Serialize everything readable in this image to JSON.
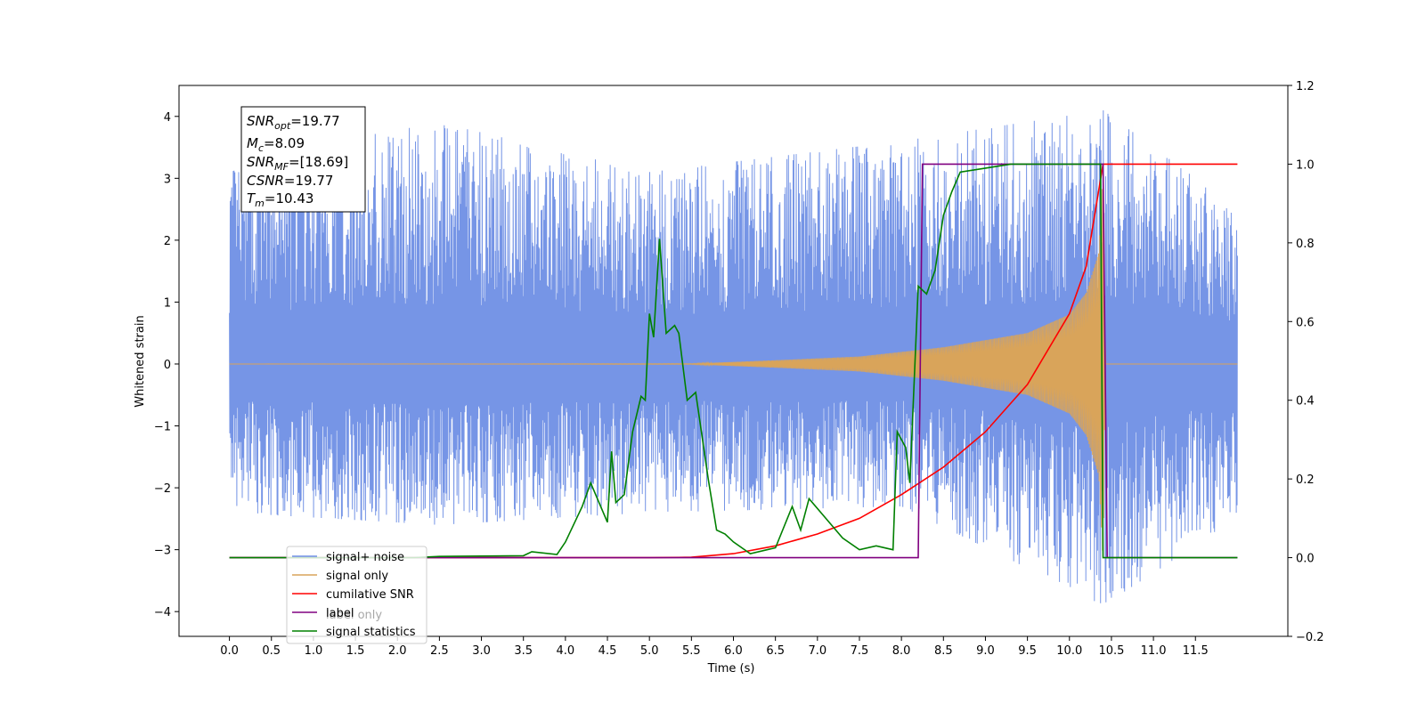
{
  "chart_data": {
    "type": "line",
    "xlabel": "Time (s)",
    "ylabel": "Whitened strain",
    "xlim": [
      -0.6,
      12.6
    ],
    "ylim": [
      -4.4,
      4.5
    ],
    "y2lim": [
      -0.2,
      1.2
    ],
    "xticks": [
      0.0,
      0.5,
      1.0,
      1.5,
      2.0,
      2.5,
      3.0,
      3.5,
      4.0,
      4.5,
      5.0,
      5.5,
      6.0,
      6.5,
      7.0,
      7.5,
      8.0,
      8.5,
      9.0,
      9.5,
      10.0,
      10.5,
      11.0,
      11.5
    ],
    "xtick_labels": [
      "0.0",
      "0.5",
      "1.0",
      "1.5",
      "2.0",
      "2.5",
      "3.0",
      "3.5",
      "4.0",
      "4.5",
      "5.0",
      "5.5",
      "6.0",
      "6.5",
      "7.0",
      "7.5",
      "8.0",
      "8.5",
      "9.0",
      "9.5",
      "10.0",
      "10.5",
      "11.0",
      "11.5"
    ],
    "yticks": [
      -4,
      -3,
      -2,
      -1,
      0,
      1,
      2,
      3,
      4
    ],
    "ytick_labels": [
      "−4",
      "−3",
      "−2",
      "−1",
      "0",
      "1",
      "2",
      "3",
      "4"
    ],
    "y2ticks": [
      -0.2,
      0.0,
      0.2,
      0.4,
      0.6,
      0.8,
      1.0,
      1.2
    ],
    "y2tick_labels": [
      "−0.2",
      "0.0",
      "0.2",
      "0.4",
      "0.6",
      "0.8",
      "1.0",
      "1.2"
    ],
    "grid": false,
    "legend_position": "lower-left",
    "stats": {
      "snr_opt": "=19.77",
      "mc": "=8.09",
      "snr_mf": "=[18.69]",
      "csnr": "=19.77",
      "tm": "=10.43"
    },
    "series": [
      {
        "name": "signal+ noise",
        "axis": "left",
        "color": "#6f8fe5",
        "style": "dense noise band",
        "x_range": [
          0.0,
          12.0
        ],
        "envelope": [
          [
            0.0,
            -2.4,
            3.3
          ],
          [
            2.5,
            -2.6,
            3.9
          ],
          [
            5.0,
            -2.4,
            3.1
          ],
          [
            8.0,
            -2.3,
            3.6
          ],
          [
            10.4,
            -3.9,
            4.1
          ],
          [
            12.0,
            -2.5,
            2.5
          ]
        ]
      },
      {
        "name": "signal only",
        "axis": "left",
        "color": "#d9a45a",
        "style": "chirp",
        "amplitude_points": [
          [
            0.0,
            0.0
          ],
          [
            5.5,
            0.005
          ],
          [
            6.5,
            0.06
          ],
          [
            7.5,
            0.12
          ],
          [
            8.5,
            0.27
          ],
          [
            9.5,
            0.5
          ],
          [
            10.0,
            0.8
          ],
          [
            10.2,
            1.15
          ],
          [
            10.35,
            1.8
          ],
          [
            10.4,
            3.2
          ],
          [
            10.43,
            0.0
          ],
          [
            12.0,
            0.0
          ]
        ]
      },
      {
        "name": "cumilative SNR",
        "axis": "right",
        "color": "#ff0000",
        "points": [
          [
            0.0,
            0.0
          ],
          [
            5.0,
            0.0
          ],
          [
            5.5,
            0.001
          ],
          [
            6.0,
            0.01
          ],
          [
            6.5,
            0.03
          ],
          [
            7.0,
            0.06
          ],
          [
            7.5,
            0.1
          ],
          [
            8.0,
            0.16
          ],
          [
            8.5,
            0.23
          ],
          [
            9.0,
            0.32
          ],
          [
            9.5,
            0.44
          ],
          [
            10.0,
            0.62
          ],
          [
            10.2,
            0.74
          ],
          [
            10.4,
            1.0
          ],
          [
            12.0,
            1.0
          ]
        ]
      },
      {
        "name": "label",
        "axis": "right",
        "color": "#800080",
        "points": [
          [
            0.0,
            0.0
          ],
          [
            8.2,
            0.0
          ],
          [
            8.25,
            1.0
          ],
          [
            10.4,
            1.0
          ],
          [
            10.45,
            0.0
          ],
          [
            12.0,
            0.0
          ]
        ]
      },
      {
        "name": "signal statistics",
        "axis": "right",
        "color": "#008000",
        "points": [
          [
            0.0,
            0.0
          ],
          [
            2.2,
            0.0
          ],
          [
            2.5,
            0.003
          ],
          [
            3.5,
            0.005
          ],
          [
            3.6,
            0.015
          ],
          [
            3.9,
            0.008
          ],
          [
            4.0,
            0.04
          ],
          [
            4.2,
            0.13
          ],
          [
            4.3,
            0.19
          ],
          [
            4.4,
            0.14
          ],
          [
            4.5,
            0.09
          ],
          [
            4.55,
            0.27
          ],
          [
            4.6,
            0.14
          ],
          [
            4.7,
            0.16
          ],
          [
            4.8,
            0.32
          ],
          [
            4.9,
            0.41
          ],
          [
            4.95,
            0.4
          ],
          [
            5.0,
            0.62
          ],
          [
            5.05,
            0.56
          ],
          [
            5.12,
            0.81
          ],
          [
            5.2,
            0.57
          ],
          [
            5.3,
            0.59
          ],
          [
            5.35,
            0.57
          ],
          [
            5.45,
            0.4
          ],
          [
            5.55,
            0.42
          ],
          [
            5.7,
            0.2
          ],
          [
            5.8,
            0.07
          ],
          [
            5.9,
            0.06
          ],
          [
            6.0,
            0.04
          ],
          [
            6.2,
            0.01
          ],
          [
            6.4,
            0.02
          ],
          [
            6.5,
            0.025
          ],
          [
            6.7,
            0.13
          ],
          [
            6.8,
            0.07
          ],
          [
            6.9,
            0.15
          ],
          [
            7.1,
            0.1
          ],
          [
            7.3,
            0.05
          ],
          [
            7.5,
            0.02
          ],
          [
            7.7,
            0.03
          ],
          [
            7.9,
            0.02
          ],
          [
            7.95,
            0.32
          ],
          [
            8.05,
            0.28
          ],
          [
            8.1,
            0.19
          ],
          [
            8.2,
            0.69
          ],
          [
            8.3,
            0.67
          ],
          [
            8.4,
            0.73
          ],
          [
            8.5,
            0.87
          ],
          [
            8.6,
            0.93
          ],
          [
            8.7,
            0.98
          ],
          [
            9.0,
            0.99
          ],
          [
            9.3,
            1.0
          ],
          [
            10.37,
            1.0
          ],
          [
            10.4,
            0.0
          ],
          [
            12.0,
            0.0
          ]
        ]
      },
      {
        "name": "label only",
        "axis": "right",
        "color": "#7fbf7f",
        "legend_only": true
      }
    ]
  }
}
